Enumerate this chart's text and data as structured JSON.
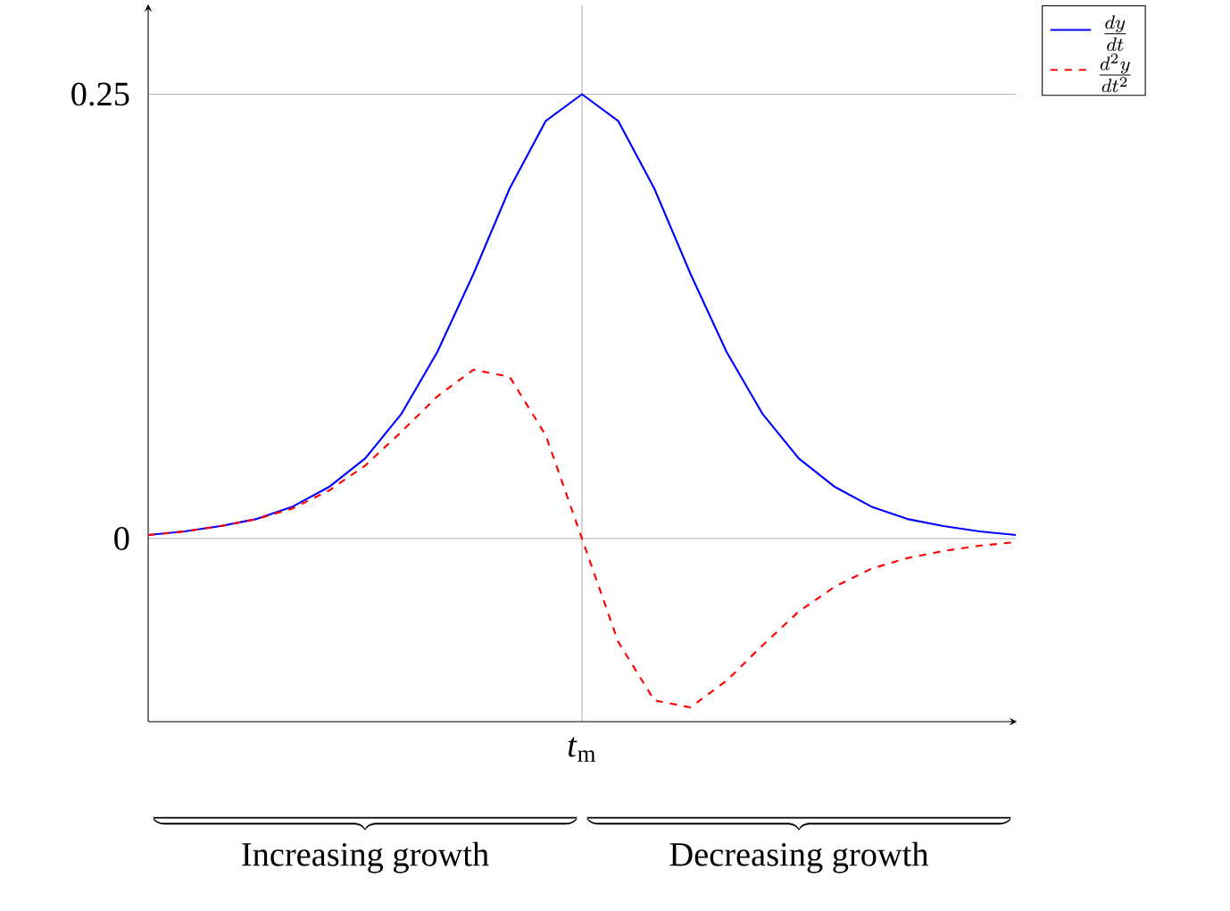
{
  "chart_data": {
    "type": "line",
    "categories": [
      null,
      null,
      null,
      null,
      null,
      null,
      null,
      null,
      null,
      null,
      null,
      null,
      "*t*$_{m}$",
      null,
      null,
      null,
      null,
      null,
      null,
      null,
      null,
      null,
      null,
      null,
      null
    ],
    "series": [
      {
        "name": "\\frac{dy}{dt}",
        "color": "#0000ff",
        "line_style": "solid",
        "values": [
          0.002,
          0.004,
          0.007,
          0.011,
          0.018,
          0.029,
          0.045,
          0.07,
          0.105,
          0.149,
          0.197,
          0.235,
          0.25,
          0.235,
          0.197,
          0.149,
          0.105,
          0.07,
          0.045,
          0.029,
          0.018,
          0.011,
          0.007,
          0.004,
          0.002
        ]
      },
      {
        "name": "\\frac{d^2y}{dt^2}",
        "color": "#ff0000",
        "line_style": "dashed",
        "values": [
          0.002,
          0.004,
          0.007,
          0.011,
          0.017,
          0.027,
          0.041,
          0.06,
          0.08,
          0.095,
          0.091,
          0.058,
          0,
          -0.058,
          -0.091,
          -0.095,
          -0.08,
          -0.06,
          -0.041,
          -0.027,
          -0.017,
          -0.011,
          -0.007,
          -0.004,
          -0.002
        ]
      }
    ],
    "ylim": [
      -0.103,
      0.3
    ],
    "yticks": [
      0,
      0.25
    ],
    "grid": true,
    "legend": "top right",
    "marker": "none",
    "annotations": [
      "Increasing growth",
      "Decreasing growth"
    ]
  }
}
